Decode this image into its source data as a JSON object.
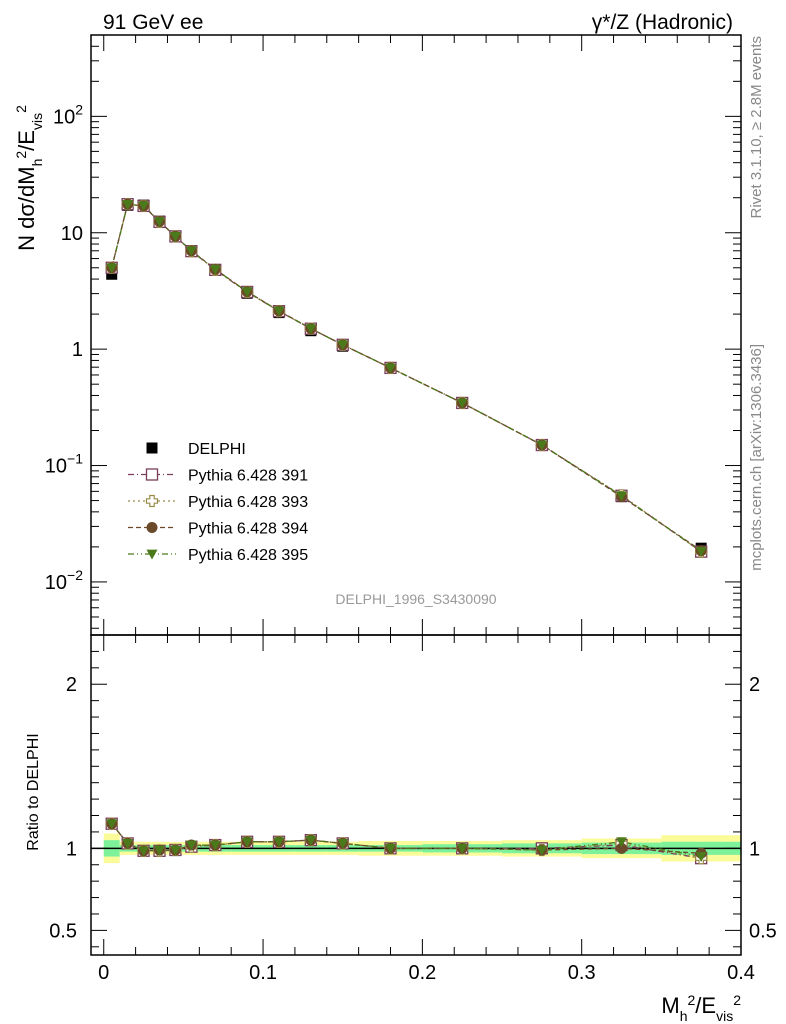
{
  "header": {
    "left": "91 GeV ee",
    "right": "γ*/Z (Hadronic)"
  },
  "side_text": {
    "rivet": "Rivet 3.1.10, ≥ 2.8M events",
    "mcplots": "mcplots.cern.ch [arXiv:1306.3436]"
  },
  "watermark": "DELPHI_1996_S3430090",
  "colors": {
    "data": "#000000",
    "p391": "#7a3d5c",
    "p393": "#9a8a4a",
    "p394": "#6b4a2a",
    "p395": "#4a7a1a",
    "band_inner": "#7ef29a",
    "band_outer": "#fbfb99"
  },
  "chart_data": [
    {
      "type": "scatter",
      "panel": "main",
      "ylabel": {
        "main": "N dσ/dM",
        "sub1": "h",
        "sup1": "2",
        "mid": "/E",
        "sub2": "vis",
        "sup2": "2"
      },
      "yscale": "log",
      "ylim": [
        0.0035,
        500
      ],
      "xlim": [
        -0.008,
        0.4
      ],
      "yticks": [
        {
          "v": 0.01,
          "base": "10",
          "exp": "−2"
        },
        {
          "v": 0.1,
          "base": "10",
          "exp": "−1"
        },
        {
          "v": 1,
          "base": "1",
          "exp": ""
        },
        {
          "v": 10,
          "base": "10",
          "exp": ""
        },
        {
          "v": 100,
          "base": "10",
          "exp": "2"
        }
      ],
      "x": [
        0.005,
        0.015,
        0.025,
        0.035,
        0.045,
        0.055,
        0.07,
        0.09,
        0.11,
        0.13,
        0.15,
        0.18,
        0.225,
        0.275,
        0.325,
        0.375
      ],
      "series": [
        {
          "key": "data",
          "name": "DELPHI",
          "marker": "square-filled",
          "line": "none",
          "values": [
            4.4,
            17.2,
            17.3,
            12.6,
            9.4,
            6.9,
            4.75,
            3.02,
            2.06,
            1.44,
            1.06,
            0.69,
            0.344,
            0.151,
            0.054,
            0.0195
          ]
        },
        {
          "key": "p391",
          "name": "Pythia 6.428 391",
          "marker": "square-open",
          "line": "6,3,1,3",
          "values": [
            5.0,
            17.6,
            17.0,
            12.4,
            9.3,
            6.95,
            4.8,
            3.1,
            2.12,
            1.5,
            1.09,
            0.69,
            0.345,
            0.15,
            0.055,
            0.0182
          ]
        },
        {
          "key": "p393",
          "name": "Pythia 6.428 393",
          "marker": "plus-open",
          "line": "2,3",
          "values": [
            5.0,
            17.6,
            17.0,
            12.4,
            9.3,
            6.95,
            4.8,
            3.1,
            2.12,
            1.5,
            1.09,
            0.69,
            0.345,
            0.15,
            0.0555,
            0.0182
          ]
        },
        {
          "key": "p394",
          "name": "Pythia 6.428 394",
          "marker": "circle-filled",
          "line": "5,3",
          "values": [
            5.0,
            17.6,
            17.0,
            12.5,
            9.3,
            7.0,
            4.85,
            3.12,
            2.13,
            1.5,
            1.09,
            0.69,
            0.345,
            0.15,
            0.054,
            0.0186
          ]
        },
        {
          "key": "p395",
          "name": "Pythia 6.428 395",
          "marker": "triangle-down-filled",
          "line": "6,3,1,3,1,3",
          "values": [
            5.0,
            17.5,
            17.1,
            12.5,
            9.3,
            7.0,
            4.85,
            3.12,
            2.13,
            1.5,
            1.09,
            0.69,
            0.345,
            0.15,
            0.055,
            0.0183
          ]
        }
      ]
    },
    {
      "type": "scatter",
      "panel": "ratio",
      "ylabel": "Ratio to DELPHI",
      "xlabel": {
        "main": "M",
        "sub1": "h",
        "sup1": "2",
        "mid": "/E",
        "sub2": "vis",
        "sup2": "2"
      },
      "ylim": [
        0.35,
        2.3
      ],
      "xlim": [
        -0.008,
        0.4
      ],
      "xticks": [
        0,
        0.1,
        0.2,
        0.3,
        0.4
      ],
      "xticklabels": [
        "0",
        "0.1",
        "0.2",
        "0.3",
        "0.4"
      ],
      "yticks": [
        0.5,
        1,
        2
      ],
      "yticklabels": [
        "0.5",
        "1",
        "2"
      ],
      "bands": {
        "edges": [
          0,
          0.01,
          0.02,
          0.03,
          0.04,
          0.05,
          0.06,
          0.08,
          0.1,
          0.12,
          0.14,
          0.16,
          0.2,
          0.25,
          0.3,
          0.35,
          0.4
        ],
        "inner": [
          0.05,
          0.02,
          0.02,
          0.02,
          0.02,
          0.02,
          0.02,
          0.02,
          0.02,
          0.02,
          0.02,
          0.02,
          0.025,
          0.03,
          0.035,
          0.04
        ],
        "outer": [
          0.09,
          0.04,
          0.04,
          0.04,
          0.04,
          0.04,
          0.04,
          0.04,
          0.04,
          0.04,
          0.04,
          0.045,
          0.045,
          0.05,
          0.06,
          0.08
        ]
      },
      "series": [
        {
          "key": "p391",
          "values": [
            1.15,
            1.03,
            0.985,
            0.985,
            0.99,
            1.01,
            1.02,
            1.04,
            1.04,
            1.05,
            1.03,
            1.0,
            1.0,
            1.0,
            1.02,
            0.94
          ]
        },
        {
          "key": "p393",
          "values": [
            1.15,
            1.03,
            0.985,
            0.985,
            0.99,
            1.01,
            1.02,
            1.04,
            1.04,
            1.05,
            1.03,
            1.0,
            1.0,
            0.99,
            1.03,
            0.94
          ]
        },
        {
          "key": "p394",
          "values": [
            1.15,
            1.03,
            0.985,
            0.99,
            0.99,
            1.02,
            1.02,
            1.04,
            1.04,
            1.05,
            1.03,
            1.0,
            1.0,
            0.99,
            1.0,
            0.97
          ]
        },
        {
          "key": "p395",
          "values": [
            1.15,
            1.03,
            0.985,
            0.99,
            0.99,
            1.02,
            1.02,
            1.04,
            1.04,
            1.05,
            1.03,
            1.0,
            1.0,
            0.99,
            1.04,
            0.95
          ]
        }
      ]
    }
  ]
}
